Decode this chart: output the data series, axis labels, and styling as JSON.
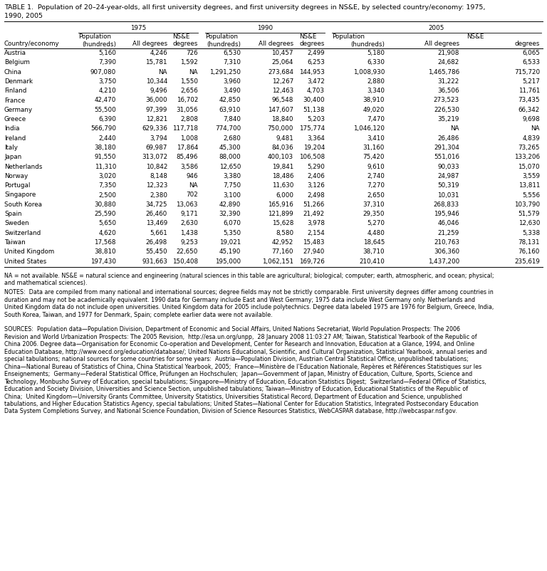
{
  "title_line1": "TABLE 1.  Population of 20–24-year-olds, all first university degrees, and first university degrees in NS&E, by selected country/economy: 1975,",
  "title_line2": "1990, 2005",
  "rows": [
    [
      "Austria",
      "5,160",
      "4,246",
      "726",
      "6,530",
      "10,457",
      "2,499",
      "5,180",
      "21,908",
      "6,065"
    ],
    [
      "Belgium",
      "7,390",
      "15,781",
      "1,592",
      "7,310",
      "25,064",
      "6,253",
      "6,330",
      "24,682",
      "6,533"
    ],
    [
      "China",
      "907,080",
      "NA",
      "NA",
      "1,291,250",
      "273,684",
      "144,953",
      "1,008,930",
      "1,465,786",
      "715,720"
    ],
    [
      "Denmark",
      "3,750",
      "10,344",
      "1,550",
      "3,960",
      "12,267",
      "3,472",
      "2,880",
      "31,222",
      "5,217"
    ],
    [
      "Finland",
      "4,210",
      "9,496",
      "2,656",
      "3,490",
      "12,463",
      "4,703",
      "3,340",
      "36,506",
      "11,761"
    ],
    [
      "France",
      "42,470",
      "36,000",
      "16,702",
      "42,850",
      "96,548",
      "30,400",
      "38,910",
      "273,523",
      "73,435"
    ],
    [
      "Germany",
      "55,500",
      "97,399",
      "31,056",
      "63,910",
      "147,607",
      "51,138",
      "49,020",
      "226,530",
      "66,342"
    ],
    [
      "Greece",
      "6,390",
      "12,821",
      "2,808",
      "7,840",
      "18,840",
      "5,203",
      "7,470",
      "35,219",
      "9,698"
    ],
    [
      "India",
      "566,790",
      "629,336",
      "117,718",
      "774,700",
      "750,000",
      "175,774",
      "1,046,120",
      "NA",
      "NA"
    ],
    [
      "Ireland",
      "2,440",
      "3,794",
      "1,008",
      "2,680",
      "9,481",
      "3,364",
      "3,410",
      "26,486",
      "4,839"
    ],
    [
      "Italy",
      "38,180",
      "69,987",
      "17,864",
      "45,300",
      "84,036",
      "19,204",
      "31,160",
      "291,304",
      "73,265"
    ],
    [
      "Japan",
      "91,550",
      "313,072",
      "85,496",
      "88,000",
      "400,103",
      "106,508",
      "75,420",
      "551,016",
      "133,206"
    ],
    [
      "Netherlands",
      "11,310",
      "10,842",
      "3,586",
      "12,650",
      "19,841",
      "5,290",
      "9,610",
      "90,033",
      "15,070"
    ],
    [
      "Norway",
      "3,020",
      "8,148",
      "946",
      "3,380",
      "18,486",
      "2,406",
      "2,740",
      "24,987",
      "3,559"
    ],
    [
      "Portugal",
      "7,350",
      "12,323",
      "NA",
      "7,750",
      "11,630",
      "3,126",
      "7,270",
      "50,319",
      "13,811"
    ],
    [
      "Singapore",
      "2,500",
      "2,380",
      "702",
      "3,100",
      "6,000",
      "2,498",
      "2,650",
      "10,031",
      "5,556"
    ],
    [
      "South Korea",
      "30,880",
      "34,725",
      "13,063",
      "42,890",
      "165,916",
      "51,266",
      "37,310",
      "268,833",
      "103,790"
    ],
    [
      "Spain",
      "25,590",
      "26,460",
      "9,171",
      "32,390",
      "121,899",
      "21,492",
      "29,350",
      "195,946",
      "51,579"
    ],
    [
      "Sweden",
      "5,650",
      "13,469",
      "2,630",
      "6,070",
      "15,628",
      "3,978",
      "5,270",
      "46,046",
      "12,630"
    ],
    [
      "Switzerland",
      "4,620",
      "5,661",
      "1,438",
      "5,350",
      "8,580",
      "2,154",
      "4,480",
      "21,259",
      "5,338"
    ],
    [
      "Taiwan",
      "17,568",
      "26,498",
      "9,253",
      "19,021",
      "42,952",
      "15,483",
      "18,645",
      "210,763",
      "78,131"
    ],
    [
      "United Kingdom",
      "38,810",
      "55,450",
      "22,650",
      "45,190",
      "77,160",
      "27,940",
      "38,710",
      "306,360",
      "76,160"
    ],
    [
      "United States",
      "197,430",
      "931,663",
      "150,408",
      "195,000",
      "1,062,151",
      "169,726",
      "210,410",
      "1,437,200",
      "235,619"
    ]
  ],
  "footnote_na": "NA = not available. NS&E = natural science and engineering (natural sciences in this table are agricultural; biological; computer; earth, atmospheric, and ocean; physical;\nand mathematical sciences).",
  "footnote_notes": "NOTES:  Data are compiled from many national and international sources; degree fields may not be strictly comparable. First university degrees differ among countries in\nduration and may not be academically equivalent. 1990 data for Germany include East and West Germany; 1975 data include West Germany only. Netherlands and\nUnited Kingdom data do not include open universities. United Kingdom data for 2005 include polytechnics. Degree data labeled 1975 are 1976 for Belgium, Greece, India,\nSouth Korea, Taiwan, and 1977 for Denmark, Spain; complete earlier data were not available.",
  "sources_text": "SOURCES:  Population data—Population Division, Department of Economic and Social Affairs, United Nations Secretariat, World Population Prospects: The 2006\nRevision and World Urbanization Prospects: The 2005 Revision,  http://esa.un.org/unpp,  28 January 2008 11:03:27 AM; Taiwan, Statistical Yearbook of the Republic of\nChina 2006. Degree data—Organisation for Economic Co-operation and Development, Center for Research and Innovation, Education at a Glance, 1994, and Online\nEducation Database, http://www.oecd.org/education/database/; United Nations Educational, Scientific, and Cultural Organization, Statistical Yearbook, annual series and\nspecial tabulations; national sources for some countries for some years:  Austria—Population Division, Austrian Central Statistical Office, unpublished tabulations;\nChina—National Bureau of Statistics of China, China Statistical Yearbook, 2005;  France—Ministère de l’Education Nationale, Repères et Références Statistiques sur les\nEnseignements;  Germany—Federal Statistical Office, Prüfungen an Hochschulen;  Japan—Government of Japan, Ministry of Education, Culture, Sports, Science and\nTechnology, Monbusho Survey of Education, special tabulations; Singapore—Ministry of Education, Education Statistics Digest;  Switzerland—Federal Office of Statistics,\nEducation and Society Division, Universities and Science Section, unpublished tabulations; Taiwan—Ministry of Education, Educational Statistics of the Republic of\nChina;  United Kingdom—University Grants Committee, University Statistics, Universities Statistical Record, Department of Education and Science, unpublished\ntabulations, and Higher Education Statistics Agency, special tabulations; United States—National Center for Education Statistics, Integrated Postsecondary Education\nData System Completions Survey, and National Science Foundation, Division of Science Resources Statistics, WebCASPAR database, http://webcaspar.nsf.gov."
}
